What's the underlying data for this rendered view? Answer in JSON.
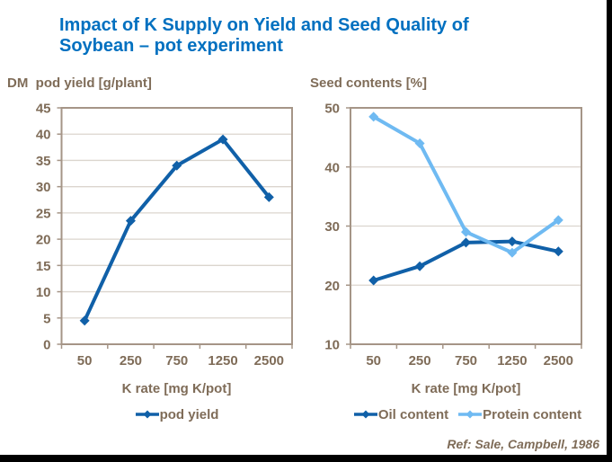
{
  "title": {
    "line1": "Impact of K Supply on Yield and Seed Quality of",
    "line2": "Soybean – pot experiment",
    "color": "#0070C0"
  },
  "reference": "Ref: Sale, Campbell, 1986",
  "colors": {
    "title_blue": "#0070C0",
    "dark_blue": "#1060A8",
    "light_blue": "#6FBAF2",
    "label_brown": "#7F6C58",
    "axis": "#A59587",
    "gridline": "#DBD5CE",
    "background": "#FFFFFF",
    "screen_edge": "#000000"
  },
  "chart_data": [
    {
      "type": "line",
      "title": "DM  pod yield [g/plant]",
      "categories": [
        "50",
        "250",
        "750",
        "1250",
        "2500"
      ],
      "xlabel": "K rate [mg K/pot]",
      "ylim": [
        0,
        45
      ],
      "ytick_step": 5,
      "grid": true,
      "legend_position": "bottom",
      "series": [
        {
          "name": "pod yield",
          "color": "#1060A8",
          "marker": "diamond",
          "values": [
            4.5,
            23.5,
            34,
            39,
            28
          ]
        }
      ]
    },
    {
      "type": "line",
      "title": "Seed contents [%]",
      "categories": [
        "50",
        "250",
        "750",
        "1250",
        "2500"
      ],
      "xlabel": "K rate [mg K/pot]",
      "ylim": [
        10,
        50
      ],
      "ytick_step": 10,
      "grid": true,
      "legend_position": "bottom",
      "series": [
        {
          "name": "Oil content",
          "color": "#1060A8",
          "marker": "diamond",
          "values": [
            20.8,
            23.2,
            27.2,
            27.4,
            25.7
          ]
        },
        {
          "name": "Protein content",
          "color": "#6FBAF2",
          "marker": "diamond",
          "values": [
            48.5,
            44,
            29,
            25.5,
            31
          ]
        }
      ]
    }
  ]
}
